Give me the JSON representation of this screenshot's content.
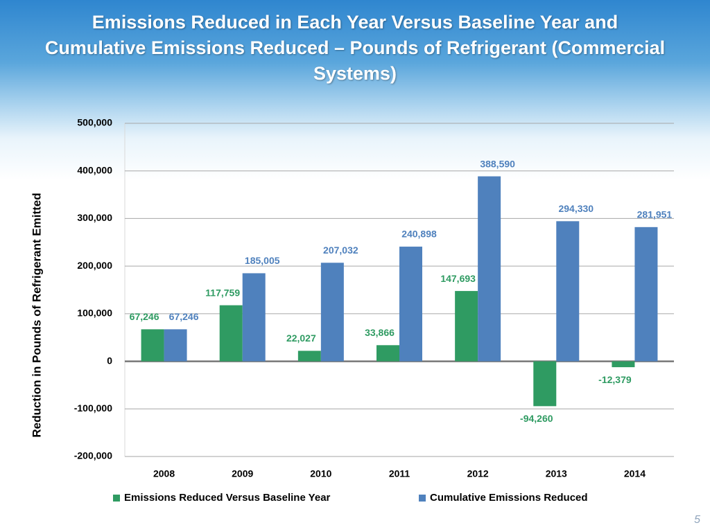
{
  "chart_data": {
    "type": "bar",
    "title": "Emissions Reduced in Each Year Versus Baseline Year and Cumulative Emissions Reduced – Pounds of Refrigerant (Commercial Systems)",
    "y_label": "Reduction in Pounds of Refrigerant Emitted",
    "categories": [
      "2008",
      "2009",
      "2010",
      "2011",
      "2012",
      "2013",
      "2014"
    ],
    "series": [
      {
        "name": "Emissions Reduced Versus Baseline Year",
        "color": "#2f9b62",
        "values": [
          67246,
          117759,
          22027,
          33866,
          147693,
          -94260,
          -12379
        ],
        "value_labels": [
          "67,246",
          "117,759",
          "22,027",
          "33,866",
          "147,693",
          "-94,260",
          "-12,379"
        ]
      },
      {
        "name": "Cumulative Emissions Reduced",
        "color": "#4f81bd",
        "values": [
          67246,
          185005,
          207032,
          240898,
          388590,
          294330,
          281951
        ],
        "value_labels": [
          "67,246",
          "185,005",
          "207,032",
          "240,898",
          "388,590",
          "294,330",
          "281,951"
        ]
      }
    ],
    "ylim": [
      -200000,
      500000
    ],
    "yticks": [
      {
        "value": -200000,
        "label": "-200,000"
      },
      {
        "value": -100000,
        "label": "-100,000"
      },
      0,
      {
        "value": 100000,
        "label": "100,000"
      },
      {
        "value": 200000,
        "label": "200,000"
      },
      {
        "value": 300000,
        "label": "300,000"
      },
      {
        "value": 400000,
        "label": "400,000"
      },
      {
        "value": 500000,
        "label": "500,000"
      }
    ],
    "grid": true,
    "legend": "bottom"
  },
  "page_number": "5"
}
